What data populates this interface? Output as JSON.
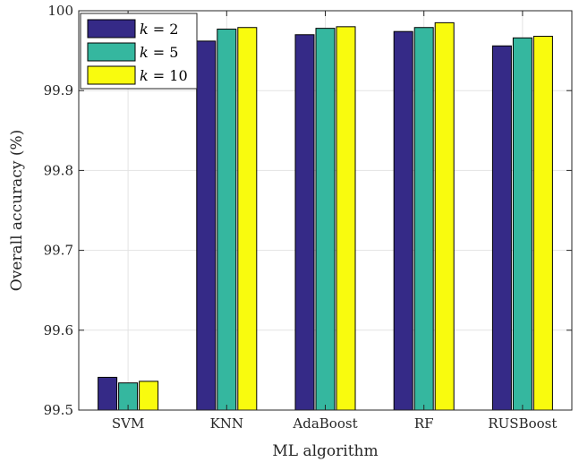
{
  "chart_data": {
    "type": "bar",
    "title": "",
    "xlabel": "ML algorithm",
    "ylabel": "Overall accuracy (%)",
    "ylim": [
      99.5,
      100
    ],
    "yticks": [
      "99.5",
      "99.6",
      "99.7",
      "99.8",
      "99.9",
      "100"
    ],
    "yticks_values": [
      99.5,
      99.6,
      99.7,
      99.8,
      99.9,
      100
    ],
    "categories": [
      "SVM",
      "KNN",
      "AdaBoost",
      "RF",
      "RUSBoost"
    ],
    "grid": true,
    "legend_position": "top-left",
    "series": [
      {
        "name": "k = 2",
        "color": "#352a87",
        "values": [
          99.541,
          99.962,
          99.97,
          99.974,
          99.956
        ]
      },
      {
        "name": "k = 5",
        "color": "#35b79f",
        "values": [
          99.534,
          99.977,
          99.978,
          99.979,
          99.966
        ]
      },
      {
        "name": "k = 10",
        "color": "#f9fb0e",
        "values": [
          99.536,
          99.979,
          99.98,
          99.985,
          99.968
        ]
      }
    ]
  }
}
